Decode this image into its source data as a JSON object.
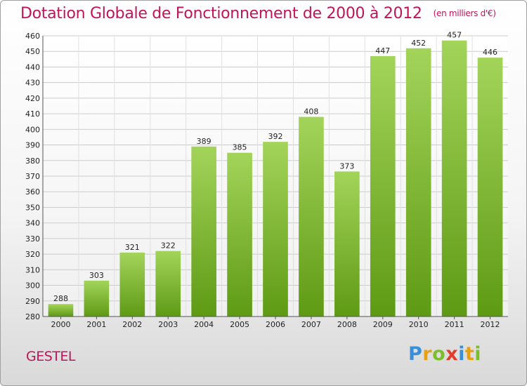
{
  "header": {
    "title": "Dotation Globale de Fonctionnement de 2000 à 2012",
    "unit": "(en milliers d'€)"
  },
  "footer": {
    "commune": "GESTEL",
    "logo": {
      "letters": [
        "P",
        "r",
        "o",
        "x",
        "i",
        "t",
        "i"
      ],
      "colors": [
        "#3a8fd8",
        "#e8a010",
        "#7cbf2a",
        "#e23d2a",
        "#3a8fd8",
        "#e8a010",
        "#7cbf2a"
      ]
    }
  },
  "colors": {
    "title": "#c0145a",
    "bar_light": "#a3d45a",
    "bar_dark": "#5e9a14",
    "grid": "#cccccc"
  },
  "chart_data": {
    "type": "bar",
    "title": "Dotation Globale de Fonctionnement de 2000 à 2012",
    "subtitle": "(en milliers d'€)",
    "xlabel": "",
    "ylabel": "",
    "categories": [
      "2000",
      "2001",
      "2002",
      "2003",
      "2004",
      "2005",
      "2006",
      "2007",
      "2008",
      "2009",
      "2010",
      "2011",
      "2012"
    ],
    "values": [
      288,
      303,
      321,
      322,
      389,
      385,
      392,
      408,
      373,
      447,
      452,
      457,
      446
    ],
    "ylim": [
      280,
      460
    ],
    "ytick_step": 10,
    "grid": true
  }
}
